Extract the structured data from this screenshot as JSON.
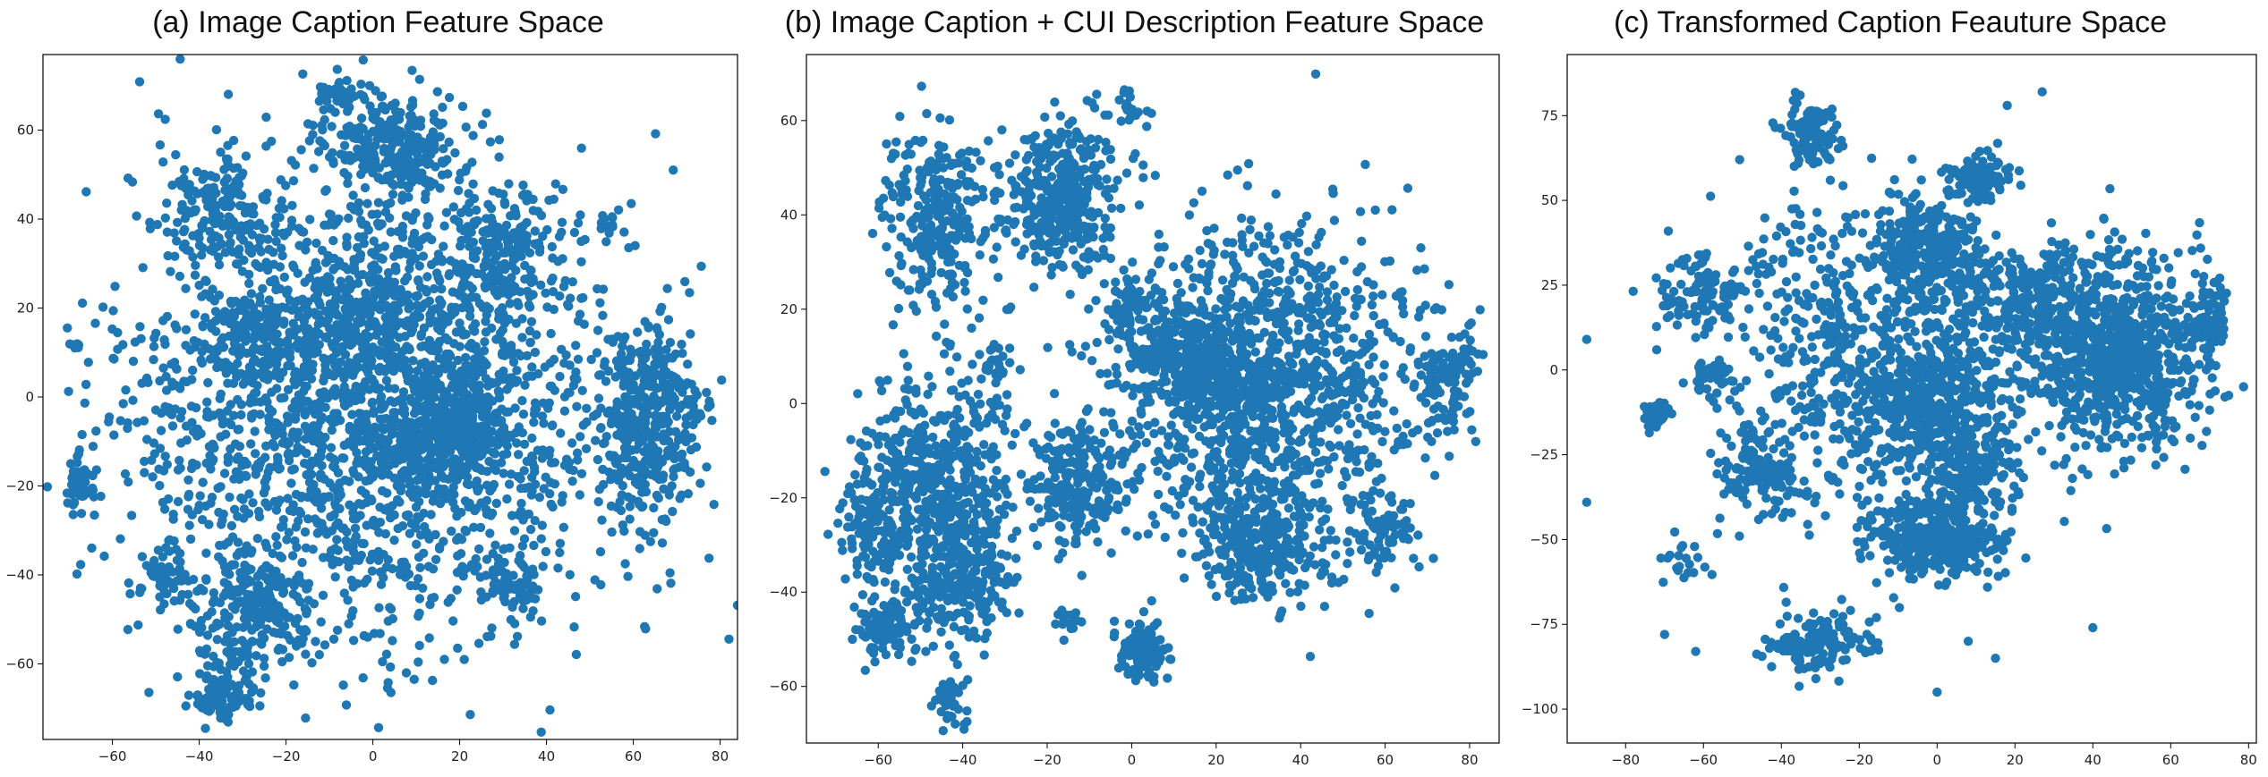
{
  "chart_data": [
    {
      "type": "scatter",
      "title": "(a) Image Caption Feature Space",
      "xlabel": "",
      "ylabel": "",
      "xlim": [
        -76,
        84
      ],
      "ylim": [
        -77,
        77
      ],
      "xticks": [
        -60,
        -40,
        -20,
        0,
        20,
        40,
        60,
        80
      ],
      "yticks": [
        -60,
        -40,
        -20,
        0,
        20,
        40,
        60
      ],
      "xtick_labels": [
        "−60",
        "−40",
        "−20",
        "0",
        "20",
        "40",
        "60",
        "80"
      ],
      "ytick_labels": [
        "−60",
        "−40",
        "−20",
        "0",
        "20",
        "40",
        "60"
      ],
      "grid": false,
      "color": "#1f77b4",
      "clusters": [
        {
          "x": 0,
          "y": 0,
          "sx": 28,
          "sy": 26,
          "n": 2200
        },
        {
          "x": 18,
          "y": -8,
          "sx": 7,
          "sy": 7,
          "n": 380
        },
        {
          "x": 63,
          "y": -5,
          "sx": 6,
          "sy": 10,
          "n": 420
        },
        {
          "x": 5,
          "y": 56,
          "sx": 8,
          "sy": 6,
          "n": 260
        },
        {
          "x": -35,
          "y": 42,
          "sx": 6,
          "sy": 6,
          "n": 160
        },
        {
          "x": -28,
          "y": -48,
          "sx": 7,
          "sy": 7,
          "n": 230
        },
        {
          "x": -35,
          "y": -67,
          "sx": 4,
          "sy": 3,
          "n": 90
        },
        {
          "x": -8,
          "y": 68,
          "sx": 3,
          "sy": 2,
          "n": 40
        },
        {
          "x": 32,
          "y": -42,
          "sx": 3,
          "sy": 3,
          "n": 60
        },
        {
          "x": 54,
          "y": 39,
          "sx": 1,
          "sy": 1,
          "n": 12
        },
        {
          "x": -68,
          "y": -20,
          "sx": 2,
          "sy": 3,
          "n": 50
        },
        {
          "x": 30,
          "y": 32,
          "sx": 6,
          "sy": 6,
          "n": 160
        },
        {
          "x": -28,
          "y": 15,
          "sx": 5,
          "sy": 5,
          "n": 120
        },
        {
          "x": 0,
          "y": 18,
          "sx": 6,
          "sy": 6,
          "n": 150
        },
        {
          "x": -48,
          "y": -40,
          "sx": 3,
          "sy": 3,
          "n": 50
        },
        {
          "x": -69,
          "y": 12,
          "sx": 0.8,
          "sy": 0.8,
          "n": 6
        }
      ]
    },
    {
      "type": "scatter",
      "title": "(b) Image Caption + CUI Description Feature Space",
      "xlabel": "",
      "ylabel": "",
      "xlim": [
        -77,
        87
      ],
      "ylim": [
        -72,
        74
      ],
      "xticks": [
        -60,
        -40,
        -20,
        0,
        20,
        40,
        60,
        80
      ],
      "yticks": [
        -60,
        -40,
        -20,
        0,
        20,
        40,
        60
      ],
      "xtick_labels": [
        "−60",
        "−40",
        "−20",
        "0",
        "20",
        "40",
        "60",
        "80"
      ],
      "ytick_labels": [
        "−60",
        "−40",
        "−20",
        "0",
        "20",
        "40",
        "60"
      ],
      "grid": false,
      "color": "#1f77b4",
      "clusters": [
        {
          "x": -17,
          "y": 44,
          "sx": 7,
          "sy": 8,
          "n": 380
        },
        {
          "x": -47,
          "y": 39,
          "sx": 6,
          "sy": 9,
          "n": 280
        },
        {
          "x": 30,
          "y": 5,
          "sx": 18,
          "sy": 16,
          "n": 1300
        },
        {
          "x": 15,
          "y": 8,
          "sx": 6,
          "sy": 5,
          "n": 250
        },
        {
          "x": 30,
          "y": -30,
          "sx": 7,
          "sy": 6,
          "n": 300
        },
        {
          "x": 60,
          "y": -28,
          "sx": 4,
          "sy": 4,
          "n": 80
        },
        {
          "x": 75,
          "y": 5,
          "sx": 4,
          "sy": 6,
          "n": 100
        },
        {
          "x": 0,
          "y": 20,
          "sx": 3,
          "sy": 3,
          "n": 70
        },
        {
          "x": -45,
          "y": -18,
          "sx": 9,
          "sy": 12,
          "n": 550
        },
        {
          "x": -62,
          "y": -25,
          "sx": 4,
          "sy": 8,
          "n": 120
        },
        {
          "x": -40,
          "y": -38,
          "sx": 6,
          "sy": 6,
          "n": 200
        },
        {
          "x": -58,
          "y": -48,
          "sx": 4,
          "sy": 3,
          "n": 100
        },
        {
          "x": -13,
          "y": -18,
          "sx": 5,
          "sy": 7,
          "n": 220
        },
        {
          "x": 3,
          "y": -53,
          "sx": 3,
          "sy": 3,
          "n": 110
        },
        {
          "x": -43,
          "y": -63,
          "sx": 2,
          "sy": 3,
          "n": 40
        },
        {
          "x": -33,
          "y": 8,
          "sx": 2,
          "sy": 3,
          "n": 25
        },
        {
          "x": -15,
          "y": -46,
          "sx": 1.5,
          "sy": 1.5,
          "n": 15
        },
        {
          "x": 0,
          "y": 63,
          "sx": 3,
          "sy": 3,
          "n": 20
        }
      ]
    },
    {
      "type": "scatter",
      "title": "(c) Transformed Caption Feauture Space",
      "xlabel": "",
      "ylabel": "",
      "xlim": [
        -95,
        82
      ],
      "ylim": [
        -110,
        93
      ],
      "xticks": [
        -80,
        -60,
        -40,
        -20,
        0,
        20,
        40,
        60,
        80
      ],
      "yticks": [
        -100,
        -75,
        -50,
        -25,
        0,
        25,
        50,
        75
      ],
      "xtick_labels": [
        "−80",
        "−60",
        "−40",
        "−20",
        "0",
        "20",
        "40",
        "60",
        "80"
      ],
      "ytick_labels": [
        "−100",
        "−75",
        "−50",
        "−25",
        "0",
        "25",
        "50",
        "75"
      ],
      "grid": false,
      "color": "#1f77b4",
      "clusters": [
        {
          "x": 45,
          "y": 5,
          "sx": 12,
          "sy": 15,
          "n": 900
        },
        {
          "x": 10,
          "y": 57,
          "sx": 4,
          "sy": 3,
          "n": 120
        },
        {
          "x": -33,
          "y": 70,
          "sx": 4,
          "sy": 5,
          "n": 90
        },
        {
          "x": -30,
          "y": -80,
          "sx": 7,
          "sy": 5,
          "n": 130
        },
        {
          "x": -60,
          "y": 22,
          "sx": 6,
          "sy": 6,
          "n": 110
        },
        {
          "x": -57,
          "y": -3,
          "sx": 3,
          "sy": 3,
          "n": 40
        },
        {
          "x": -72,
          "y": -13,
          "sx": 2,
          "sy": 2,
          "n": 40
        },
        {
          "x": 0,
          "y": -50,
          "sx": 8,
          "sy": 6,
          "n": 350
        },
        {
          "x": -2,
          "y": -10,
          "sx": 10,
          "sy": 12,
          "n": 550
        },
        {
          "x": -2,
          "y": 35,
          "sx": 7,
          "sy": 8,
          "n": 300
        },
        {
          "x": 10,
          "y": -30,
          "sx": 5,
          "sy": 6,
          "n": 170
        },
        {
          "x": -25,
          "y": 10,
          "sx": 15,
          "sy": 25,
          "n": 450
        },
        {
          "x": -45,
          "y": -30,
          "sx": 6,
          "sy": 6,
          "n": 120
        },
        {
          "x": 70,
          "y": 15,
          "sx": 3,
          "sy": 6,
          "n": 80
        },
        {
          "x": 20,
          "y": 20,
          "sx": 8,
          "sy": 8,
          "n": 200
        },
        {
          "x": -65,
          "y": -58,
          "sx": 4,
          "sy": 4,
          "n": 20
        }
      ],
      "outliers": [
        {
          "x": -90,
          "y": 9
        },
        {
          "x": -90,
          "y": -39
        },
        {
          "x": 27,
          "y": 82
        },
        {
          "x": 40,
          "y": -76
        },
        {
          "x": 0,
          "y": -95
        },
        {
          "x": -70,
          "y": -78
        },
        {
          "x": 18,
          "y": 78
        },
        {
          "x": -62,
          "y": -83
        },
        {
          "x": 15,
          "y": -85
        },
        {
          "x": 8,
          "y": -80
        }
      ]
    }
  ]
}
